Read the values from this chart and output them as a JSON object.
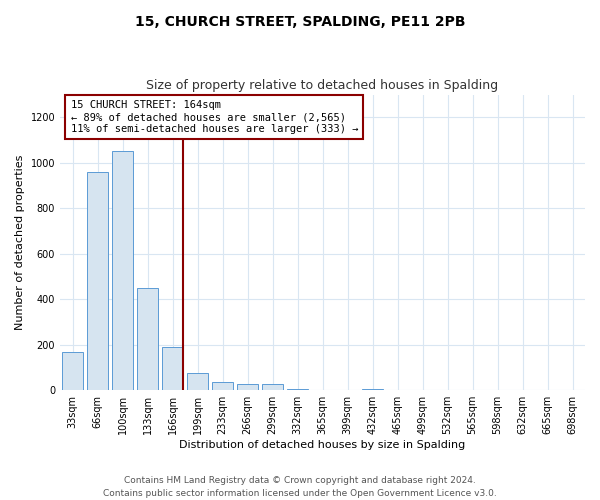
{
  "title_line1": "15, CHURCH STREET, SPALDING, PE11 2PB",
  "title_line2": "Size of property relative to detached houses in Spalding",
  "xlabel": "Distribution of detached houses by size in Spalding",
  "ylabel": "Number of detached properties",
  "categories": [
    "33sqm",
    "66sqm",
    "100sqm",
    "133sqm",
    "166sqm",
    "199sqm",
    "233sqm",
    "266sqm",
    "299sqm",
    "332sqm",
    "365sqm",
    "399sqm",
    "432sqm",
    "465sqm",
    "499sqm",
    "532sqm",
    "565sqm",
    "598sqm",
    "632sqm",
    "665sqm",
    "698sqm"
  ],
  "values": [
    170,
    960,
    1050,
    450,
    190,
    75,
    35,
    28,
    27,
    5,
    0,
    0,
    4,
    0,
    0,
    0,
    0,
    0,
    0,
    0,
    0
  ],
  "bar_color": "#d6e4f0",
  "bar_edge_color": "#5b9bd5",
  "highlight_index": 4,
  "highlight_line_color": "#8B0000",
  "annotation_box_text": "15 CHURCH STREET: 164sqm\n← 89% of detached houses are smaller (2,565)\n11% of semi-detached houses are larger (333) →",
  "annotation_box_edge_color": "#8B0000",
  "ylim": [
    0,
    1300
  ],
  "yticks": [
    0,
    200,
    400,
    600,
    800,
    1000,
    1200
  ],
  "footnote": "Contains HM Land Registry data © Crown copyright and database right 2024.\nContains public sector information licensed under the Open Government Licence v3.0.",
  "bg_color": "#ffffff",
  "plot_bg_color": "#ffffff",
  "grid_color": "#d9e6f2",
  "title_fontsize": 10,
  "subtitle_fontsize": 9,
  "axis_label_fontsize": 8,
  "tick_fontsize": 7,
  "footnote_fontsize": 6.5
}
